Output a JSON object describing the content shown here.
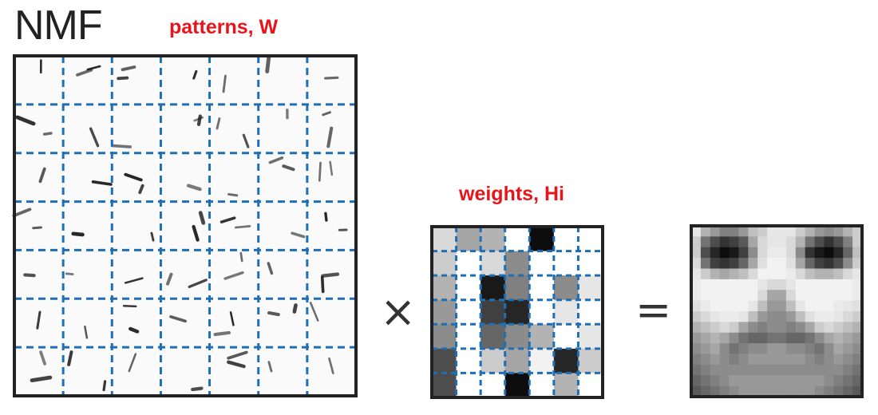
{
  "title": "NMF",
  "patterns_label": "patterns, W",
  "weights_label": "weights, Hi",
  "times_symbol": "×",
  "equals_symbol": "=",
  "colors": {
    "label": "#e8141b",
    "grid_dash": "#1f6fb5",
    "frame": "#222222"
  },
  "weights_grid": [
    [
      0.15,
      0.35,
      0.3,
      0.0,
      0.95,
      0.0,
      0.0
    ],
    [
      0.2,
      0.0,
      0.15,
      0.45,
      0.0,
      0.0,
      0.0
    ],
    [
      0.3,
      0.0,
      0.9,
      0.5,
      0.0,
      0.45,
      0.1
    ],
    [
      0.4,
      0.0,
      0.75,
      0.85,
      0.0,
      0.1,
      0.0
    ],
    [
      0.45,
      0.0,
      0.6,
      0.45,
      0.3,
      0.0,
      0.1
    ],
    [
      0.7,
      0.0,
      0.2,
      0.35,
      0.05,
      0.85,
      0.2
    ],
    [
      0.7,
      0.0,
      0.0,
      0.95,
      0.0,
      0.3,
      0.0
    ]
  ],
  "face_grid": [
    [
      0.1,
      0.3,
      0.4,
      0.5,
      0.5,
      0.4,
      0.25,
      0.2,
      0.1,
      0.1,
      0.1,
      0.2,
      0.3,
      0.4,
      0.45,
      0.4,
      0.3,
      0.2
    ],
    [
      0.2,
      0.55,
      0.7,
      0.8,
      0.75,
      0.65,
      0.35,
      0.15,
      0.1,
      0.1,
      0.15,
      0.3,
      0.55,
      0.7,
      0.8,
      0.7,
      0.5,
      0.2
    ],
    [
      0.2,
      0.7,
      0.85,
      0.95,
      0.9,
      0.75,
      0.45,
      0.15,
      0.08,
      0.08,
      0.15,
      0.45,
      0.8,
      0.9,
      0.95,
      0.85,
      0.6,
      0.25
    ],
    [
      0.15,
      0.55,
      0.75,
      0.8,
      0.75,
      0.6,
      0.35,
      0.12,
      0.05,
      0.05,
      0.12,
      0.35,
      0.6,
      0.75,
      0.8,
      0.7,
      0.45,
      0.2
    ],
    [
      0.1,
      0.2,
      0.3,
      0.35,
      0.3,
      0.25,
      0.15,
      0.05,
      0.05,
      0.05,
      0.08,
      0.15,
      0.25,
      0.3,
      0.3,
      0.25,
      0.15,
      0.1
    ],
    [
      0.08,
      0.05,
      0.05,
      0.05,
      0.05,
      0.05,
      0.05,
      0.1,
      0.15,
      0.15,
      0.1,
      0.05,
      0.05,
      0.05,
      0.05,
      0.05,
      0.05,
      0.08
    ],
    [
      0.08,
      0.05,
      0.05,
      0.05,
      0.05,
      0.05,
      0.05,
      0.15,
      0.35,
      0.35,
      0.15,
      0.05,
      0.05,
      0.05,
      0.05,
      0.05,
      0.05,
      0.08
    ],
    [
      0.12,
      0.08,
      0.05,
      0.05,
      0.05,
      0.05,
      0.1,
      0.25,
      0.4,
      0.4,
      0.25,
      0.1,
      0.05,
      0.05,
      0.05,
      0.08,
      0.1,
      0.12
    ],
    [
      0.2,
      0.15,
      0.1,
      0.08,
      0.08,
      0.1,
      0.25,
      0.4,
      0.45,
      0.45,
      0.4,
      0.25,
      0.12,
      0.08,
      0.08,
      0.1,
      0.15,
      0.2
    ],
    [
      0.3,
      0.25,
      0.2,
      0.15,
      0.2,
      0.35,
      0.45,
      0.5,
      0.45,
      0.45,
      0.5,
      0.45,
      0.35,
      0.2,
      0.15,
      0.2,
      0.25,
      0.3
    ],
    [
      0.4,
      0.35,
      0.3,
      0.35,
      0.45,
      0.55,
      0.6,
      0.6,
      0.55,
      0.55,
      0.6,
      0.6,
      0.55,
      0.45,
      0.35,
      0.3,
      0.35,
      0.4
    ],
    [
      0.45,
      0.4,
      0.35,
      0.45,
      0.55,
      0.5,
      0.45,
      0.45,
      0.4,
      0.4,
      0.45,
      0.45,
      0.5,
      0.55,
      0.45,
      0.35,
      0.4,
      0.45
    ],
    [
      0.5,
      0.45,
      0.4,
      0.45,
      0.5,
      0.45,
      0.4,
      0.4,
      0.4,
      0.4,
      0.4,
      0.4,
      0.45,
      0.5,
      0.45,
      0.4,
      0.45,
      0.5
    ],
    [
      0.55,
      0.5,
      0.45,
      0.45,
      0.45,
      0.45,
      0.45,
      0.45,
      0.45,
      0.45,
      0.45,
      0.45,
      0.45,
      0.45,
      0.45,
      0.45,
      0.5,
      0.55
    ],
    [
      0.6,
      0.55,
      0.5,
      0.45,
      0.4,
      0.4,
      0.4,
      0.4,
      0.4,
      0.4,
      0.4,
      0.4,
      0.4,
      0.4,
      0.45,
      0.5,
      0.55,
      0.6
    ],
    [
      0.65,
      0.6,
      0.55,
      0.5,
      0.45,
      0.4,
      0.4,
      0.4,
      0.4,
      0.4,
      0.4,
      0.4,
      0.4,
      0.45,
      0.5,
      0.55,
      0.6,
      0.65
    ]
  ]
}
